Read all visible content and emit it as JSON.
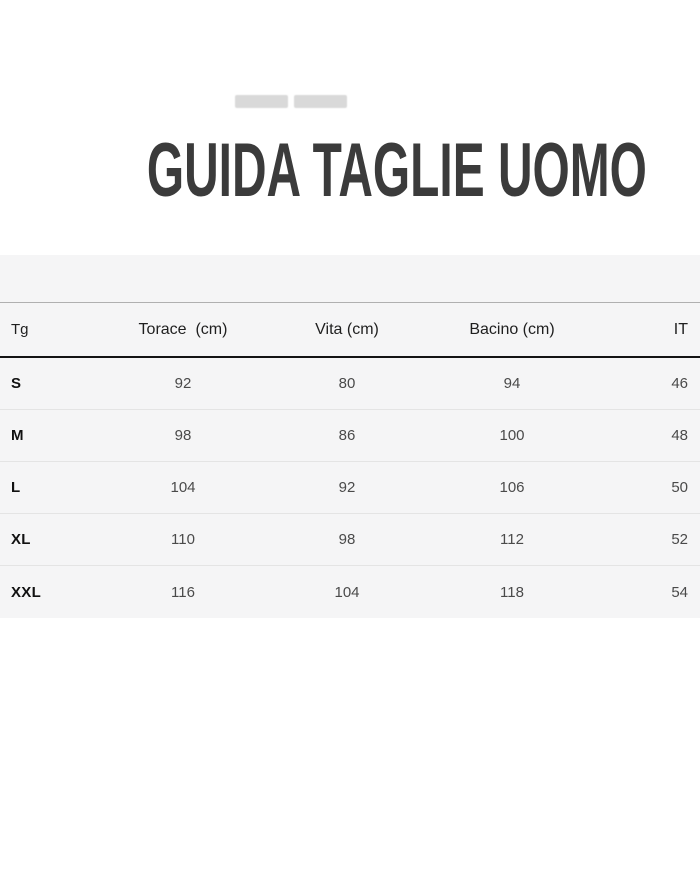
{
  "title": {
    "text": "GUIDA TAGLIE UOMO",
    "color": "#3b3b3b"
  },
  "size_table": {
    "columns": [
      {
        "key": "tg",
        "label": "Tg",
        "align": "left"
      },
      {
        "key": "torace",
        "label": "Torace  (cm)",
        "align": "center"
      },
      {
        "key": "vita",
        "label": "Vita (cm)",
        "align": "center"
      },
      {
        "key": "bacino",
        "label": "Bacino (cm)",
        "align": "center"
      },
      {
        "key": "it",
        "label": "IT",
        "align": "right"
      }
    ],
    "rows": [
      {
        "tg": "S",
        "torace": "92",
        "vita": "80",
        "bacino": "94",
        "it": "46"
      },
      {
        "tg": "M",
        "torace": "98",
        "vita": "86",
        "bacino": "100",
        "it": "48"
      },
      {
        "tg": "L",
        "torace": "104",
        "vita": "92",
        "bacino": "106",
        "it": "50"
      },
      {
        "tg": "XL",
        "torace": "110",
        "vita": "98",
        "bacino": "112",
        "it": "52"
      },
      {
        "tg": "XXL",
        "torace": "116",
        "vita": "104",
        "bacino": "118",
        "it": "54"
      }
    ],
    "colors": {
      "band_background": "#f5f5f6",
      "header_text": "#1f1f1f",
      "row_label_text": "#111111",
      "cell_text": "#4a4a4a",
      "heavy_rule": "#141414",
      "light_rule": "#e4e4e4",
      "top_rule": "#b0b0b0"
    }
  }
}
